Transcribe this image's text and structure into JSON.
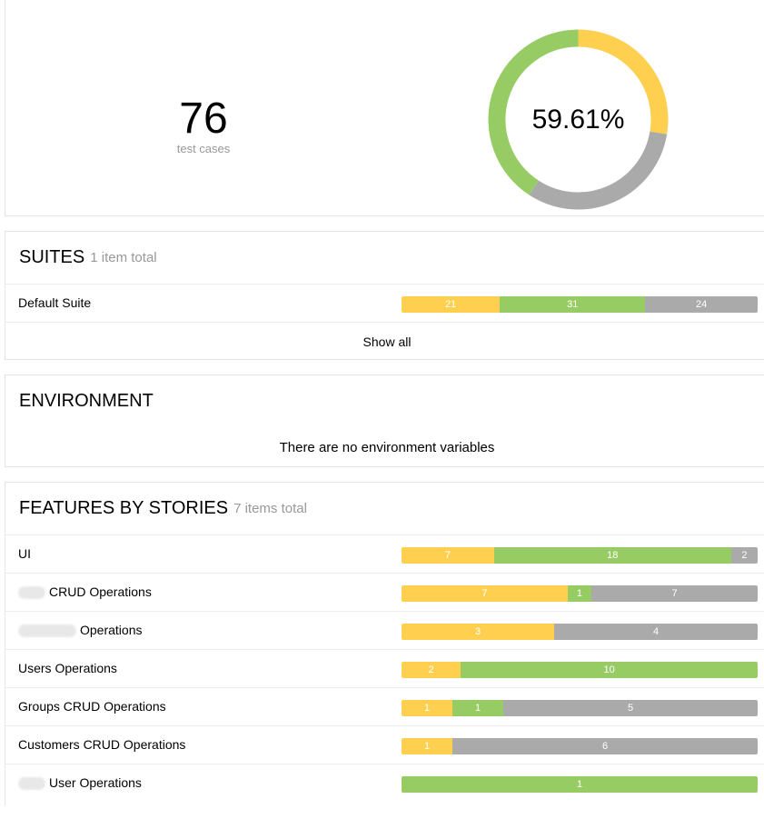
{
  "summary": {
    "count": "76",
    "count_label": "test cases",
    "percent_label": "59.61%",
    "donut": [
      {
        "status": "broken",
        "value": 21,
        "color": "#ffd050"
      },
      {
        "status": "unknown",
        "value": 24,
        "color": "#aaaaaa"
      },
      {
        "status": "passed",
        "value": 31,
        "color": "#97cc64"
      }
    ]
  },
  "suites": {
    "title": "SUITES",
    "total": "1 item total",
    "items": [
      {
        "name": "Default Suite",
        "segments": [
          {
            "status": "broken",
            "value": 21,
            "label": "21"
          },
          {
            "status": "passed",
            "value": 31,
            "label": "31"
          },
          {
            "status": "unknown",
            "value": 24,
            "label": "24"
          }
        ]
      }
    ],
    "show_all": "Show all"
  },
  "environment": {
    "title": "ENVIRONMENT",
    "empty_text": "There are no environment variables"
  },
  "features": {
    "title": "FEATURES BY STORIES",
    "total": "7 items total",
    "items": [
      {
        "name": "UI",
        "redacted": "",
        "segments": [
          {
            "status": "broken",
            "value": 7,
            "label": "7"
          },
          {
            "status": "passed",
            "value": 18,
            "label": "18"
          },
          {
            "status": "unknown",
            "value": 2,
            "label": "2"
          }
        ]
      },
      {
        "name": "CRUD Operations",
        "redacted": "short",
        "segments": [
          {
            "status": "broken",
            "value": 7,
            "label": "7"
          },
          {
            "status": "passed",
            "value": 1,
            "label": "1"
          },
          {
            "status": "unknown",
            "value": 7,
            "label": "7"
          }
        ]
      },
      {
        "name": "Operations",
        "redacted": "wide",
        "segments": [
          {
            "status": "broken",
            "value": 3,
            "label": "3"
          },
          {
            "status": "unknown",
            "value": 4,
            "label": "4"
          }
        ]
      },
      {
        "name": "Users Operations",
        "redacted": "",
        "segments": [
          {
            "status": "broken",
            "value": 2,
            "label": "2"
          },
          {
            "status": "passed",
            "value": 10,
            "label": "10"
          }
        ]
      },
      {
        "name": "Groups CRUD Operations",
        "redacted": "",
        "segments": [
          {
            "status": "broken",
            "value": 1,
            "label": "1"
          },
          {
            "status": "passed",
            "value": 1,
            "label": "1"
          },
          {
            "status": "unknown",
            "value": 5,
            "label": "5"
          }
        ]
      },
      {
        "name": "Customers CRUD Operations",
        "redacted": "",
        "segments": [
          {
            "status": "broken",
            "value": 1,
            "label": "1"
          },
          {
            "status": "unknown",
            "value": 6,
            "label": "6"
          }
        ]
      },
      {
        "name": "User Operations",
        "redacted": "short",
        "segments": [
          {
            "status": "passed",
            "value": 1,
            "label": "1"
          }
        ]
      }
    ]
  }
}
